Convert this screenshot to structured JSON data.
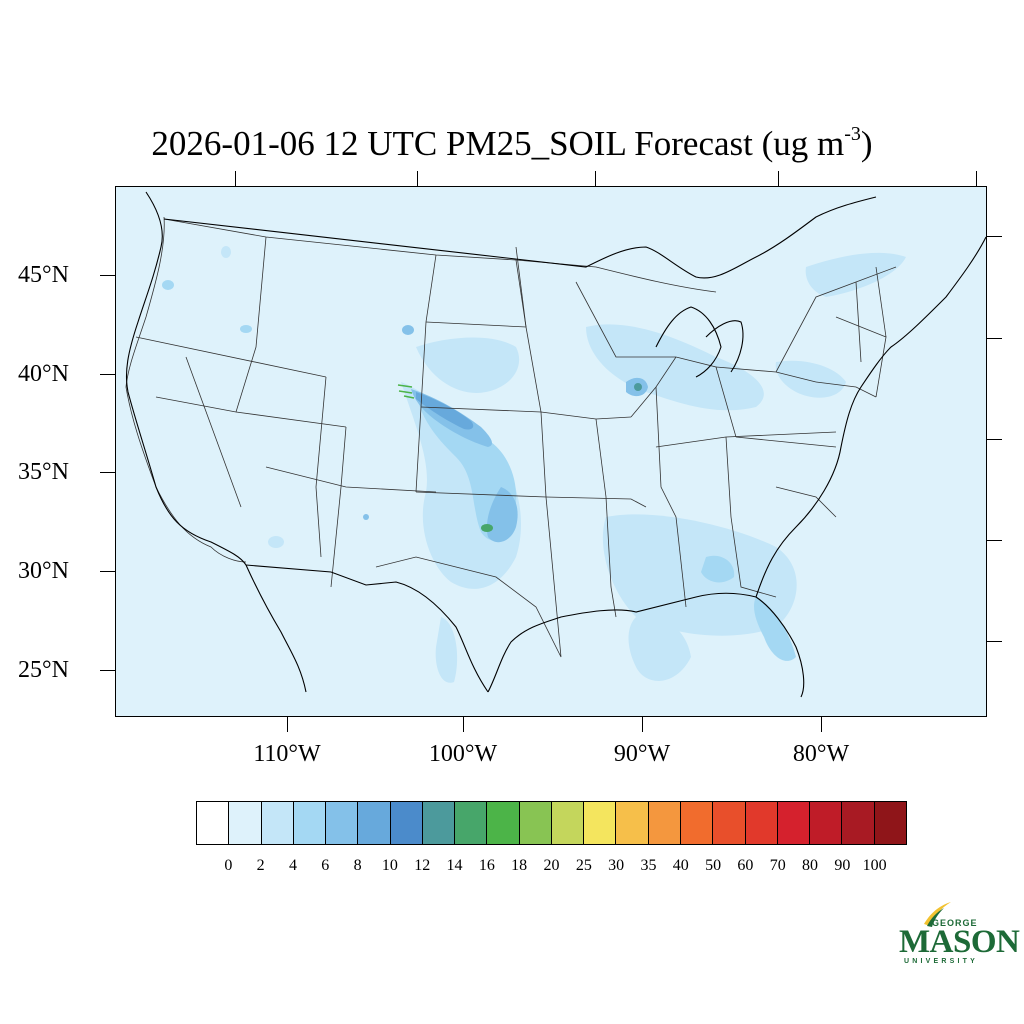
{
  "title": {
    "main": "2026-01-06 12 UTC PM25_SOIL Forecast (ug m",
    "sup": "-3",
    "tail": ")"
  },
  "map": {
    "projection": "lambert-conformal",
    "region": "CONUS",
    "background_color": "#def2fb",
    "lat_labels": [
      "45°N",
      "40°N",
      "35°N",
      "30°N",
      "25°N"
    ],
    "lon_labels": [
      "110°W",
      "100°W",
      "90°W",
      "80°W"
    ]
  },
  "colorbar": {
    "labels": [
      "0",
      "2",
      "4",
      "6",
      "8",
      "10",
      "12",
      "14",
      "16",
      "18",
      "20",
      "25",
      "30",
      "35",
      "40",
      "50",
      "60",
      "70",
      "80",
      "90",
      "100"
    ],
    "colors": [
      "#ffffff",
      "#def2fb",
      "#c4e6f8",
      "#a4d8f3",
      "#84c1e9",
      "#67a9dc",
      "#4b8bcb",
      "#4c9a9c",
      "#47a66a",
      "#4cb448",
      "#88c453",
      "#c4d65c",
      "#f4e55e",
      "#f6bf4a",
      "#f4973e",
      "#f16c2d",
      "#e84f2b",
      "#e1392b",
      "#d5212d",
      "#bf1c28",
      "#a81a23",
      "#8f1519"
    ]
  },
  "logo": {
    "george": "GEORGE",
    "mason": "MASON",
    "university": "UNIVERSITY",
    "color": "#1d6a37",
    "accent": "#f2c230"
  }
}
